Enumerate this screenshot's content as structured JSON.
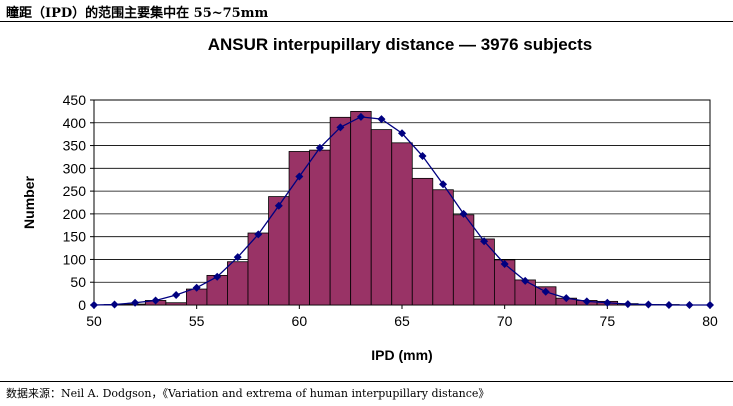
{
  "caption": "瞳距（IPD）的范围主要集中在 55~75mm",
  "source": "数据来源：Neil A. Dodgson，《Variation and extrema of human interpupillary distance》",
  "chart_data": {
    "type": "bar",
    "title": "ANSUR interpupillary distance — 3976 subjects",
    "xlabel": "IPD (mm)",
    "ylabel": "Number",
    "xlim": [
      50,
      80
    ],
    "ylim": [
      0,
      450
    ],
    "xticks": [
      50,
      55,
      60,
      65,
      70,
      75,
      80
    ],
    "yticks": [
      0,
      50,
      100,
      150,
      200,
      250,
      300,
      350,
      400,
      450
    ],
    "grid": true,
    "bar_color": "#993366",
    "line_color": "#000080",
    "bars": {
      "x": [
        51,
        52,
        53,
        54,
        55,
        56,
        57,
        58,
        59,
        60,
        61,
        62,
        63,
        64,
        65,
        66,
        67,
        68,
        69,
        70,
        71,
        72,
        73,
        74,
        75,
        76,
        77,
        78,
        79
      ],
      "values": [
        1,
        2,
        10,
        5,
        35,
        65,
        95,
        158,
        238,
        337,
        340,
        412,
        425,
        385,
        356,
        278,
        253,
        198,
        145,
        99,
        55,
        40,
        15,
        10,
        8,
        3,
        1,
        1,
        0
      ]
    },
    "fit_line": {
      "x": [
        50,
        51,
        52,
        53,
        54,
        55,
        56,
        57,
        58,
        59,
        60,
        61,
        62,
        63,
        64,
        65,
        66,
        67,
        68,
        69,
        70,
        71,
        72,
        73,
        74,
        75,
        76,
        77,
        78,
        79,
        80
      ],
      "y": [
        0,
        1,
        5,
        10,
        22,
        38,
        62,
        105,
        155,
        218,
        282,
        345,
        390,
        413,
        408,
        377,
        327,
        265,
        200,
        140,
        90,
        53,
        29,
        15,
        8,
        5,
        2,
        1,
        0,
        0,
        0
      ]
    }
  }
}
